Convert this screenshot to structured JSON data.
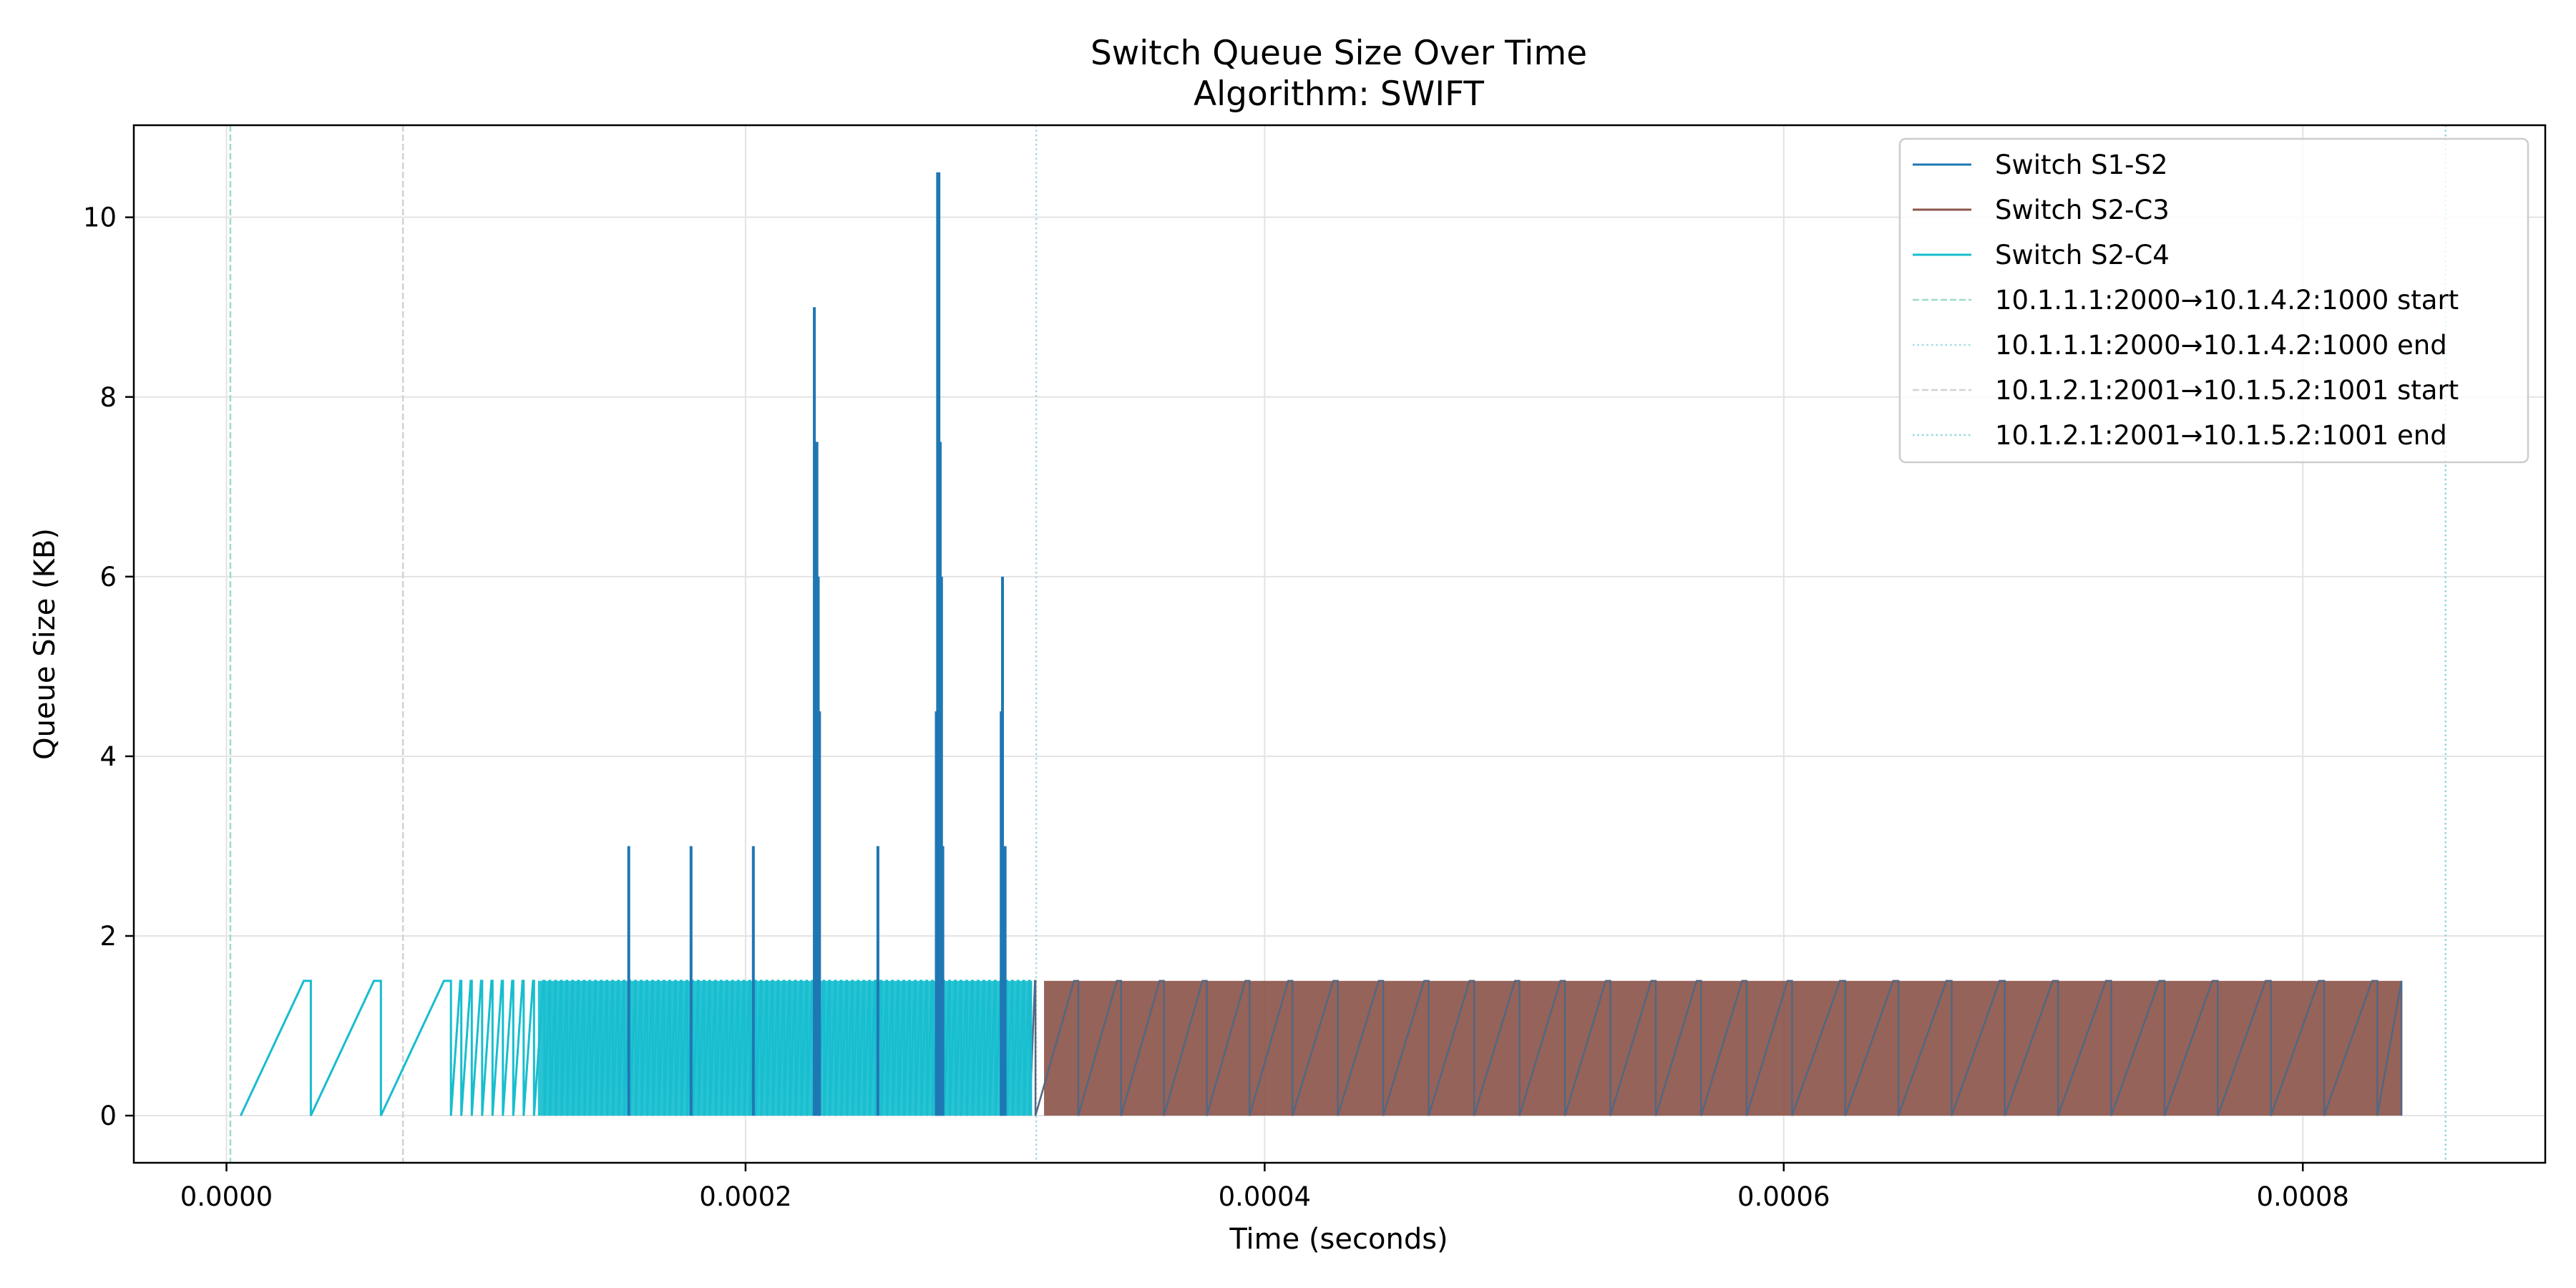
{
  "chart_data": {
    "type": "line",
    "title": "Switch Queue Size Over Time",
    "subtitle": "Algorithm: SWIFT",
    "xlabel": "Time (seconds)",
    "ylabel": "Queue Size (KB)",
    "xlim": [
      -3.57e-05,
      0.0008934
    ],
    "ylim": [
      -0.525,
      11.025
    ],
    "xticks": [
      0.0,
      0.0002,
      0.0004,
      0.0006,
      0.0008
    ],
    "xtick_labels": [
      "0.0000",
      "0.0002",
      "0.0004",
      "0.0006",
      "0.0008"
    ],
    "yticks": [
      0,
      2,
      4,
      6,
      8,
      10
    ],
    "ytick_labels": [
      "0",
      "2",
      "4",
      "6",
      "8",
      "10"
    ],
    "grid": true,
    "legend_position": "top-right",
    "sawtooth_peak": 1.5,
    "series": [
      {
        "name": "Switch S1-S2",
        "color": "#1f77b4",
        "spikes": [
          {
            "x": 0.000155,
            "y": 3.0
          },
          {
            "x": 0.000179,
            "y": 3.0
          },
          {
            "x": 0.000203,
            "y": 3.0
          },
          {
            "x": 0.0002265,
            "y": 9.0
          },
          {
            "x": 0.0002275,
            "y": 7.5
          },
          {
            "x": 0.000228,
            "y": 6.0
          },
          {
            "x": 0.0002285,
            "y": 4.5
          },
          {
            "x": 0.000251,
            "y": 3.0
          },
          {
            "x": 0.0002735,
            "y": 4.5
          },
          {
            "x": 0.000274,
            "y": 10.5
          },
          {
            "x": 0.0002745,
            "y": 10.5
          },
          {
            "x": 0.000275,
            "y": 7.5
          },
          {
            "x": 0.0002755,
            "y": 6.0
          },
          {
            "x": 0.000276,
            "y": 3.0
          },
          {
            "x": 0.0002985,
            "y": 4.5
          },
          {
            "x": 0.000299,
            "y": 6.0
          },
          {
            "x": 0.0003,
            "y": 3.0
          }
        ]
      },
      {
        "name": "Switch S2-C3",
        "color": "#8c564b",
        "sawtooth_range": [
          5.5e-06,
          0.000838
        ]
      },
      {
        "name": "Switch S2-C4",
        "color": "#17becf",
        "sawtooth_range": [
          5.5e-06,
          0.00031
        ]
      }
    ],
    "markers": [
      {
        "name": "10.1.1.1:2000→10.1.4.2:1000 start",
        "x": 1.5e-06,
        "color": "#9fdbc9",
        "style": "dashed"
      },
      {
        "name": "10.1.1.1:2000→10.1.4.2:1000 end",
        "x": 0.000312,
        "color": "#9fdbe3",
        "style": "dotted"
      },
      {
        "name": "10.1.2.1:2001→10.1.5.2:1001 start",
        "x": 6.8e-05,
        "color": "#cfd3d6",
        "style": "dashed"
      },
      {
        "name": "10.1.2.1:2001→10.1.5.2:1001 end",
        "x": 0.000855,
        "color": "#8ed6dc",
        "style": "dotted"
      }
    ]
  }
}
